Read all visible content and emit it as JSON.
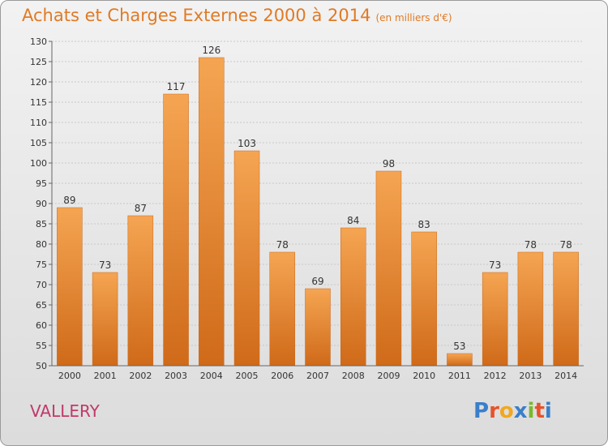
{
  "header": {
    "title": "Achats et Charges Externes 2000 à 2014",
    "unit": "(en milliers d'€)"
  },
  "footer": {
    "town": "VALLERY",
    "logo_text": "Proxiti",
    "logo_colors": [
      "#3a7fc9",
      "#e8522b",
      "#f2a81d",
      "#3a7fc9",
      "#7ab730",
      "#e8522b",
      "#3a7fc9"
    ]
  },
  "colors": {
    "bar_top": "#f5a552",
    "bar_bottom": "#cf6a19",
    "title": "#e07a25",
    "town": "#c0396a"
  },
  "chart_data": {
    "type": "bar",
    "title": "Achats et Charges Externes 2000 à 2014",
    "subtitle": "(en milliers d'€)",
    "categories": [
      "2000",
      "2001",
      "2002",
      "2003",
      "2004",
      "2005",
      "2006",
      "2007",
      "2008",
      "2009",
      "2010",
      "2011",
      "2012",
      "2013",
      "2014"
    ],
    "values": [
      89,
      73,
      87,
      117,
      126,
      103,
      78,
      69,
      84,
      98,
      83,
      53,
      73,
      78,
      78
    ],
    "ylim": [
      50,
      130
    ],
    "yticks": [
      50,
      55,
      60,
      65,
      70,
      75,
      80,
      85,
      90,
      95,
      100,
      105,
      110,
      115,
      120,
      125,
      130
    ],
    "grid": true,
    "legend": "none"
  }
}
